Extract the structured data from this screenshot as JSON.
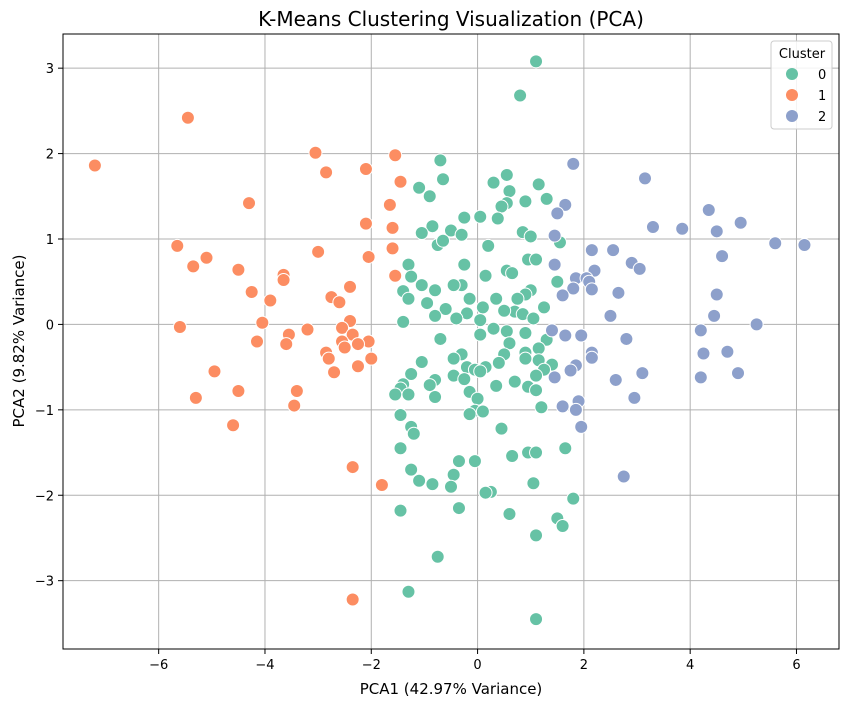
{
  "chart_data": {
    "type": "scatter",
    "title": "K-Means Clustering Visualization (PCA)",
    "xlabel": "PCA1 (42.97% Variance)",
    "ylabel": "PCA2 (9.82% Variance)",
    "xlim": [
      -7.8,
      6.8
    ],
    "ylim": [
      -3.8,
      3.4
    ],
    "xticks": [
      -6,
      -4,
      -2,
      0,
      2,
      4,
      6
    ],
    "yticks": [
      -3,
      -2,
      -1,
      0,
      1,
      2,
      3
    ],
    "xtick_labels": [
      "−6",
      "−4",
      "−2",
      "0",
      "2",
      "4",
      "6"
    ],
    "ytick_labels": [
      "−3",
      "−2",
      "−1",
      "0",
      "1",
      "2",
      "3"
    ],
    "grid": true,
    "legend": {
      "title": "Cluster",
      "placement": "top-right"
    },
    "series": [
      {
        "name": "0",
        "color": "#66c2a5",
        "points": [
          [
            0.8,
            2.68
          ],
          [
            1.1,
            3.08
          ],
          [
            -0.7,
            1.92
          ],
          [
            -0.65,
            1.7
          ],
          [
            0.3,
            1.66
          ],
          [
            0.55,
            1.75
          ],
          [
            1.15,
            1.64
          ],
          [
            0.6,
            1.56
          ],
          [
            -1.1,
            1.6
          ],
          [
            -0.9,
            1.5
          ],
          [
            1.3,
            1.47
          ],
          [
            0.9,
            1.44
          ],
          [
            0.55,
            1.42
          ],
          [
            0.45,
            1.38
          ],
          [
            -0.25,
            1.25
          ],
          [
            0.05,
            1.26
          ],
          [
            0.38,
            1.24
          ],
          [
            -0.85,
            1.15
          ],
          [
            -0.5,
            1.1
          ],
          [
            0.85,
            1.08
          ],
          [
            -1.05,
            1.07
          ],
          [
            -0.3,
            1.05
          ],
          [
            1.0,
            1.03
          ],
          [
            -0.75,
            0.93
          ],
          [
            0.2,
            0.92
          ],
          [
            -0.65,
            0.98
          ],
          [
            1.55,
            0.96
          ],
          [
            -0.25,
            0.7
          ],
          [
            0.55,
            0.63
          ],
          [
            0.95,
            0.76
          ],
          [
            1.1,
            0.76
          ],
          [
            -1.3,
            0.7
          ],
          [
            -1.25,
            0.56
          ],
          [
            0.65,
            0.6
          ],
          [
            0.15,
            0.57
          ],
          [
            -0.3,
            0.46
          ],
          [
            -0.45,
            0.46
          ],
          [
            -1.05,
            0.46
          ],
          [
            1.0,
            0.4
          ],
          [
            1.5,
            0.5
          ],
          [
            -1.4,
            0.39
          ],
          [
            -0.8,
            0.4
          ],
          [
            0.9,
            0.35
          ],
          [
            0.35,
            0.3
          ],
          [
            -1.3,
            0.3
          ],
          [
            -0.95,
            0.25
          ],
          [
            -0.15,
            0.3
          ],
          [
            0.75,
            0.3
          ],
          [
            0.1,
            0.2
          ],
          [
            1.25,
            0.2
          ],
          [
            -0.6,
            0.18
          ],
          [
            0.7,
            0.15
          ],
          [
            0.5,
            0.16
          ],
          [
            -0.2,
            0.13
          ],
          [
            -0.8,
            0.1
          ],
          [
            0.85,
            0.12
          ],
          [
            -0.4,
            0.07
          ],
          [
            1.05,
            0.07
          ],
          [
            -1.4,
            0.03
          ],
          [
            0.05,
            0.05
          ],
          [
            0.3,
            -0.05
          ],
          [
            0.55,
            -0.08
          ],
          [
            0.9,
            -0.1
          ],
          [
            0.05,
            -0.12
          ],
          [
            -0.7,
            -0.17
          ],
          [
            1.3,
            -0.18
          ],
          [
            0.6,
            -0.22
          ],
          [
            1.15,
            -0.28
          ],
          [
            0.9,
            -0.33
          ],
          [
            -0.3,
            -0.35
          ],
          [
            0.5,
            -0.35
          ],
          [
            -0.45,
            -0.4
          ],
          [
            1.15,
            -0.42
          ],
          [
            0.9,
            -0.4
          ],
          [
            -1.05,
            -0.44
          ],
          [
            0.4,
            -0.45
          ],
          [
            1.4,
            -0.47
          ],
          [
            -0.2,
            -0.5
          ],
          [
            0.15,
            -0.5
          ],
          [
            -0.05,
            -0.53
          ],
          [
            1.25,
            -0.53
          ],
          [
            0.05,
            -0.55
          ],
          [
            -1.25,
            -0.58
          ],
          [
            -0.45,
            -0.6
          ],
          [
            1.1,
            -0.6
          ],
          [
            -0.25,
            -0.64
          ],
          [
            -0.8,
            -0.65
          ],
          [
            0.7,
            -0.67
          ],
          [
            -1.4,
            -0.7
          ],
          [
            -0.9,
            -0.71
          ],
          [
            0.35,
            -0.72
          ],
          [
            0.95,
            -0.73
          ],
          [
            -1.45,
            -0.75
          ],
          [
            1.1,
            -0.77
          ],
          [
            -0.15,
            -0.79
          ],
          [
            0.0,
            -0.87
          ],
          [
            -1.55,
            -0.82
          ],
          [
            -1.3,
            -0.82
          ],
          [
            -0.8,
            -0.85
          ],
          [
            1.2,
            -0.97
          ],
          [
            -0.05,
            -1.01
          ],
          [
            0.1,
            -1.02
          ],
          [
            -0.15,
            -1.05
          ],
          [
            0.45,
            -1.22
          ],
          [
            -1.45,
            -1.06
          ],
          [
            -1.25,
            -1.2
          ],
          [
            -1.2,
            -1.28
          ],
          [
            -0.35,
            -1.6
          ],
          [
            -1.45,
            -1.45
          ],
          [
            0.95,
            -1.5
          ],
          [
            1.1,
            -1.5
          ],
          [
            0.65,
            -1.54
          ],
          [
            1.65,
            -1.45
          ],
          [
            -0.05,
            -1.6
          ],
          [
            -1.25,
            -1.7
          ],
          [
            -0.45,
            -1.76
          ],
          [
            -1.1,
            -1.83
          ],
          [
            -0.85,
            -1.87
          ],
          [
            -0.5,
            -1.9
          ],
          [
            1.05,
            -1.86
          ],
          [
            0.25,
            -1.96
          ],
          [
            0.15,
            -1.97
          ],
          [
            1.8,
            -2.04
          ],
          [
            -0.35,
            -2.15
          ],
          [
            -1.45,
            -2.18
          ],
          [
            0.6,
            -2.22
          ],
          [
            1.5,
            -2.27
          ],
          [
            1.6,
            -2.36
          ],
          [
            1.1,
            -2.47
          ],
          [
            -0.75,
            -2.72
          ],
          [
            -1.3,
            -3.13
          ],
          [
            1.1,
            -3.45
          ]
        ]
      },
      {
        "name": "1",
        "color": "#fc8d62",
        "points": [
          [
            -7.2,
            1.86
          ],
          [
            -5.45,
            2.42
          ],
          [
            -3.05,
            2.01
          ],
          [
            -1.55,
            1.98
          ],
          [
            -2.85,
            1.78
          ],
          [
            -2.1,
            1.82
          ],
          [
            -1.45,
            1.67
          ],
          [
            -4.3,
            1.42
          ],
          [
            -1.65,
            1.4
          ],
          [
            -2.1,
            1.18
          ],
          [
            -1.6,
            1.13
          ],
          [
            -5.65,
            0.92
          ],
          [
            -3.0,
            0.85
          ],
          [
            -1.6,
            0.89
          ],
          [
            -2.05,
            0.79
          ],
          [
            -5.1,
            0.78
          ],
          [
            -5.35,
            0.68
          ],
          [
            -4.5,
            0.64
          ],
          [
            -3.65,
            0.58
          ],
          [
            -3.65,
            0.52
          ],
          [
            -1.55,
            0.57
          ],
          [
            -2.4,
            0.44
          ],
          [
            -4.25,
            0.38
          ],
          [
            -3.9,
            0.28
          ],
          [
            -2.75,
            0.32
          ],
          [
            -2.6,
            0.26
          ],
          [
            -4.05,
            0.02
          ],
          [
            -5.6,
            -0.03
          ],
          [
            -2.4,
            0.04
          ],
          [
            -3.2,
            -0.06
          ],
          [
            -2.55,
            -0.04
          ],
          [
            -3.55,
            -0.12
          ],
          [
            -2.35,
            -0.12
          ],
          [
            -2.55,
            -0.2
          ],
          [
            -4.15,
            -0.2
          ],
          [
            -2.05,
            -0.2
          ],
          [
            -3.6,
            -0.23
          ],
          [
            -2.25,
            -0.23
          ],
          [
            -2.5,
            -0.27
          ],
          [
            -2.85,
            -0.33
          ],
          [
            -2.8,
            -0.4
          ],
          [
            -2.0,
            -0.4
          ],
          [
            -2.25,
            -0.49
          ],
          [
            -4.95,
            -0.55
          ],
          [
            -2.7,
            -0.56
          ],
          [
            -4.5,
            -0.78
          ],
          [
            -3.4,
            -0.78
          ],
          [
            -5.3,
            -0.86
          ],
          [
            -3.45,
            -0.95
          ],
          [
            -4.6,
            -1.18
          ],
          [
            -2.35,
            -1.67
          ],
          [
            -1.8,
            -1.88
          ],
          [
            -2.35,
            -3.22
          ]
        ]
      },
      {
        "name": "2",
        "color": "#8da0cb",
        "points": [
          [
            1.8,
            1.88
          ],
          [
            3.15,
            1.71
          ],
          [
            1.65,
            1.4
          ],
          [
            4.35,
            1.34
          ],
          [
            1.5,
            1.3
          ],
          [
            4.95,
            1.19
          ],
          [
            3.3,
            1.14
          ],
          [
            3.85,
            1.12
          ],
          [
            4.5,
            1.09
          ],
          [
            1.45,
            1.04
          ],
          [
            5.6,
            0.95
          ],
          [
            6.15,
            0.93
          ],
          [
            2.15,
            0.87
          ],
          [
            2.55,
            0.87
          ],
          [
            4.6,
            0.8
          ],
          [
            1.45,
            0.7
          ],
          [
            2.9,
            0.72
          ],
          [
            3.05,
            0.65
          ],
          [
            2.2,
            0.63
          ],
          [
            1.85,
            0.54
          ],
          [
            2.05,
            0.54
          ],
          [
            2.1,
            0.5
          ],
          [
            1.8,
            0.42
          ],
          [
            2.15,
            0.41
          ],
          [
            2.65,
            0.37
          ],
          [
            1.6,
            0.34
          ],
          [
            4.5,
            0.35
          ],
          [
            2.5,
            0.1
          ],
          [
            4.45,
            0.1
          ],
          [
            5.25,
            0.0
          ],
          [
            1.4,
            -0.07
          ],
          [
            4.2,
            -0.07
          ],
          [
            1.65,
            -0.13
          ],
          [
            1.95,
            -0.13
          ],
          [
            2.8,
            -0.17
          ],
          [
            4.25,
            -0.34
          ],
          [
            4.7,
            -0.32
          ],
          [
            2.15,
            -0.33
          ],
          [
            2.15,
            -0.39
          ],
          [
            1.85,
            -0.48
          ],
          [
            1.75,
            -0.54
          ],
          [
            3.1,
            -0.57
          ],
          [
            4.9,
            -0.57
          ],
          [
            4.2,
            -0.62
          ],
          [
            1.45,
            -0.62
          ],
          [
            2.6,
            -0.65
          ],
          [
            1.9,
            -0.9
          ],
          [
            1.6,
            -0.96
          ],
          [
            2.95,
            -0.86
          ],
          [
            1.85,
            -1.0
          ],
          [
            1.95,
            -1.2
          ],
          [
            2.75,
            -1.78
          ]
        ]
      }
    ]
  }
}
